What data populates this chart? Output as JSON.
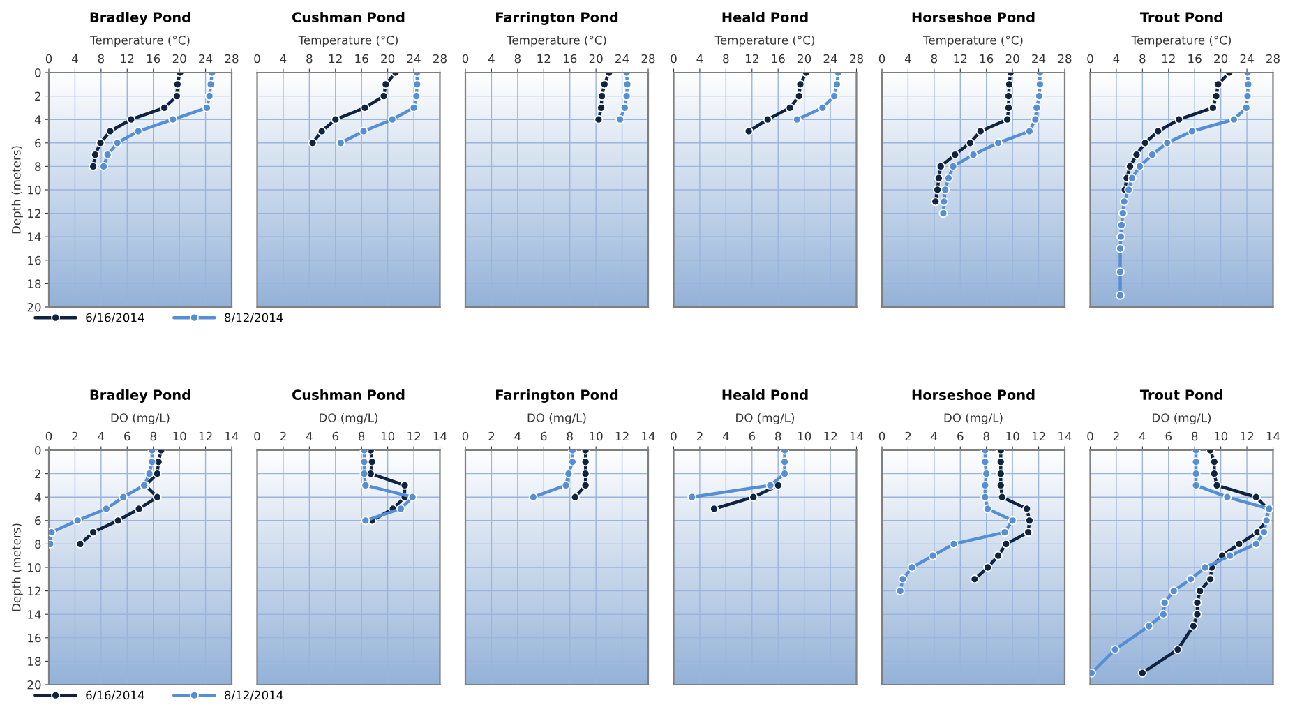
{
  "chart_data": [
    {
      "type": "line",
      "title": "Bradley Pond",
      "xlabel": "Temperature (°C)",
      "ylabel": "Depth (meters)",
      "xlim": [
        0,
        28
      ],
      "xticks": [
        0,
        4,
        8,
        12,
        16,
        20,
        24,
        28
      ],
      "ylim": [
        20,
        0
      ],
      "yticks": [
        0,
        2,
        4,
        6,
        8,
        10,
        12,
        14,
        16,
        18,
        20
      ],
      "grid": true,
      "marker": "circle",
      "line_style": "solid",
      "legend": "bottom",
      "series": [
        {
          "name": "6/16/2014",
          "color": "#0f2340",
          "x": [
            20.1,
            19.7,
            19.6,
            17.7,
            12.6,
            9.4,
            7.9,
            7.1,
            6.8
          ],
          "values": [
            0,
            1,
            2,
            3,
            4,
            5,
            6,
            7,
            8
          ]
        },
        {
          "name": "8/12/2014",
          "color": "#558ed5",
          "x": [
            25.0,
            24.8,
            24.6,
            24.2,
            19.0,
            13.7,
            10.5,
            9.0,
            8.4
          ],
          "values": [
            0,
            1,
            2,
            3,
            4,
            5,
            6,
            7,
            8
          ]
        }
      ]
    },
    {
      "type": "line",
      "title": "Cushman Pond",
      "xlabel": "Temperature (°C)",
      "xlim": [
        0,
        28
      ],
      "xticks": [
        0,
        4,
        8,
        12,
        16,
        20,
        24,
        28
      ],
      "ylim": [
        20,
        0
      ],
      "yticks": [
        0,
        2,
        4,
        6,
        8,
        10,
        12,
        14,
        16,
        18,
        20
      ],
      "grid": true,
      "marker": "circle",
      "line_style": "solid",
      "tick_labels": "x",
      "series": [
        {
          "color": "#0f2340",
          "x": [
            21.2,
            19.7,
            19.4,
            16.5,
            12.0,
            9.9,
            8.5
          ],
          "values": [
            0,
            1,
            2,
            3,
            4,
            5,
            6
          ]
        },
        {
          "color": "#558ed5",
          "x": [
            24.5,
            24.5,
            24.4,
            24.0,
            20.7,
            16.3,
            12.8
          ],
          "values": [
            0,
            1,
            2,
            3,
            4,
            5,
            6
          ]
        }
      ]
    },
    {
      "type": "line",
      "title": "Farrington Pond",
      "xlabel": "Temperature (°C)",
      "xlim": [
        0,
        28
      ],
      "xticks": [
        0,
        4,
        8,
        12,
        16,
        20,
        24,
        28
      ],
      "ylim": [
        20,
        0
      ],
      "yticks": [
        0,
        2,
        4,
        6,
        8,
        10,
        12,
        14,
        16,
        18,
        20
      ],
      "grid": true,
      "marker": "circle",
      "line_style": "solid",
      "tick_labels": "x",
      "series": [
        {
          "color": "#0f2340",
          "x": [
            22.0,
            21.3,
            20.9,
            20.8,
            20.4
          ],
          "values": [
            0,
            1,
            2,
            3,
            4
          ]
        },
        {
          "color": "#558ed5",
          "x": [
            24.7,
            24.8,
            24.7,
            24.4,
            23.7
          ],
          "values": [
            0,
            1,
            2,
            3,
            4
          ]
        }
      ]
    },
    {
      "type": "line",
      "title": "Heald Pond",
      "xlabel": "Temperature (°C)",
      "xlim": [
        0,
        28
      ],
      "xticks": [
        0,
        4,
        8,
        12,
        16,
        20,
        24,
        28
      ],
      "ylim": [
        20,
        0
      ],
      "yticks": [
        0,
        2,
        4,
        6,
        8,
        10,
        12,
        14,
        16,
        18,
        20
      ],
      "grid": true,
      "marker": "circle",
      "line_style": "solid",
      "tick_labels": "x",
      "series": [
        {
          "color": "#0f2340",
          "x": [
            20.3,
            19.4,
            19.2,
            17.8,
            14.4,
            11.5
          ],
          "values": [
            0,
            1,
            2,
            3,
            4,
            5
          ]
        },
        {
          "color": "#558ed5",
          "x": [
            25.2,
            25.0,
            24.6,
            22.8,
            18.9
          ],
          "values": [
            0,
            1,
            2,
            3,
            4
          ]
        }
      ]
    },
    {
      "type": "line",
      "title": "Horseshoe Pond",
      "xlabel": "Temperature (°C)",
      "xlim": [
        0,
        28
      ],
      "xticks": [
        0,
        4,
        8,
        12,
        16,
        20,
        24,
        28
      ],
      "ylim": [
        20,
        0
      ],
      "yticks": [
        0,
        2,
        4,
        6,
        8,
        10,
        12,
        14,
        16,
        18,
        20
      ],
      "grid": true,
      "marker": "circle",
      "line_style": "solid",
      "tick_labels": "x",
      "series": [
        {
          "color": "#0f2340",
          "x": [
            19.7,
            19.5,
            19.4,
            19.4,
            19.2,
            15.1,
            13.5,
            11.2,
            9.0,
            8.7,
            8.5,
            8.2
          ],
          "values": [
            0,
            1,
            2,
            3,
            4,
            5,
            6,
            7,
            8,
            9,
            10,
            11
          ]
        },
        {
          "color": "#558ed5",
          "x": [
            24.2,
            24.2,
            24.1,
            23.7,
            23.5,
            22.6,
            17.8,
            14.0,
            10.9,
            10.2,
            9.7,
            9.5,
            9.4
          ],
          "values": [
            0,
            1,
            2,
            3,
            4,
            5,
            6,
            7,
            8,
            9,
            10,
            11,
            12
          ]
        }
      ]
    },
    {
      "type": "line",
      "title": "Trout Pond",
      "xlabel": "Temperature (°C)",
      "xlim": [
        0,
        28
      ],
      "xticks": [
        0,
        4,
        8,
        12,
        16,
        20,
        24,
        28
      ],
      "ylim": [
        20,
        0
      ],
      "yticks": [
        0,
        2,
        4,
        6,
        8,
        10,
        12,
        14,
        16,
        18,
        20
      ],
      "grid": true,
      "marker": "circle",
      "line_style": "solid",
      "tick_labels": "x",
      "series": [
        {
          "color": "#0f2340",
          "x": [
            21.3,
            19.6,
            19.3,
            18.8,
            13.6,
            10.4,
            8.4,
            7.1,
            6.1,
            5.6,
            5.3
          ],
          "values": [
            0,
            1,
            2,
            3,
            4,
            5,
            6,
            7,
            8,
            9,
            10
          ]
        },
        {
          "color": "#558ed5",
          "x": [
            24.1,
            24.2,
            24.1,
            23.9,
            22.0,
            15.6,
            11.8,
            9.5,
            7.6,
            6.4,
            5.9,
            5.2,
            5.0,
            4.8,
            4.7,
            4.6,
            4.6,
            4.6
          ],
          "values": [
            0,
            1,
            2,
            3,
            4,
            5,
            6,
            7,
            8,
            9,
            10,
            11,
            12,
            13,
            14,
            15,
            17,
            19
          ]
        }
      ]
    },
    {
      "type": "line",
      "title": "Bradley Pond",
      "xlabel": "DO (mg/L)",
      "ylabel": "Depth (meters)",
      "xlim": [
        0,
        14
      ],
      "xticks": [
        0,
        2,
        4,
        6,
        8,
        10,
        12,
        14
      ],
      "ylim": [
        20,
        0
      ],
      "yticks": [
        0,
        2,
        4,
        6,
        8,
        10,
        12,
        14,
        16,
        18,
        20
      ],
      "grid": true,
      "marker": "circle",
      "line_style": "solid",
      "legend": "bottom",
      "series": [
        {
          "name": "6/16/2014",
          "color": "#0f2340",
          "x": [
            8.6,
            8.4,
            8.3,
            7.4,
            8.3,
            6.9,
            5.3,
            3.4,
            2.4
          ],
          "values": [
            0,
            1,
            2,
            3,
            4,
            5,
            6,
            7,
            8
          ]
        },
        {
          "name": "8/12/2014",
          "color": "#558ed5",
          "x": [
            7.9,
            7.9,
            7.7,
            7.3,
            5.7,
            4.4,
            2.2,
            0.2,
            0.1
          ],
          "values": [
            0,
            1,
            2,
            3,
            4,
            5,
            6,
            7,
            8
          ]
        }
      ]
    },
    {
      "type": "line",
      "title": "Cushman Pond",
      "xlabel": "DO (mg/L)",
      "xlim": [
        0,
        14
      ],
      "xticks": [
        0,
        2,
        4,
        6,
        8,
        10,
        12,
        14
      ],
      "ylim": [
        20,
        0
      ],
      "yticks": [
        0,
        2,
        4,
        6,
        8,
        10,
        12,
        14,
        16,
        18,
        20
      ],
      "grid": true,
      "marker": "circle",
      "line_style": "solid",
      "tick_labels": "x",
      "series": [
        {
          "color": "#0f2340",
          "x": [
            8.7,
            8.8,
            8.7,
            11.3,
            11.3,
            10.4,
            8.8
          ],
          "values": [
            0,
            1,
            2,
            3,
            4,
            5,
            6
          ]
        },
        {
          "color": "#558ed5",
          "x": [
            8.2,
            8.2,
            8.2,
            8.3,
            11.9,
            11.0,
            8.3
          ],
          "values": [
            0,
            1,
            2,
            3,
            4,
            5,
            6
          ]
        }
      ]
    },
    {
      "type": "line",
      "title": "Farrington Pond",
      "xlabel": "DO (mg/L)",
      "xlim": [
        0,
        14
      ],
      "xticks": [
        0,
        2,
        4,
        6,
        8,
        10,
        12,
        14
      ],
      "ylim": [
        20,
        0
      ],
      "yticks": [
        0,
        2,
        4,
        6,
        8,
        10,
        12,
        14,
        16,
        18,
        20
      ],
      "grid": true,
      "marker": "circle",
      "line_style": "solid",
      "tick_labels": "x",
      "series": [
        {
          "color": "#0f2340",
          "x": [
            9.2,
            9.2,
            9.2,
            9.2,
            8.4
          ],
          "values": [
            0,
            1,
            2,
            3,
            4
          ]
        },
        {
          "color": "#558ed5",
          "x": [
            8.2,
            8.2,
            7.9,
            7.7,
            5.2
          ],
          "values": [
            0,
            1,
            2,
            3,
            4
          ]
        }
      ]
    },
    {
      "type": "line",
      "title": "Heald Pond",
      "xlabel": "DO (mg/L)",
      "xlim": [
        0,
        14
      ],
      "xticks": [
        0,
        2,
        4,
        6,
        8,
        10,
        12,
        14
      ],
      "ylim": [
        20,
        0
      ],
      "yticks": [
        0,
        2,
        4,
        6,
        8,
        10,
        12,
        14,
        16,
        18,
        20
      ],
      "grid": true,
      "marker": "circle",
      "line_style": "solid",
      "tick_labels": "x",
      "series": [
        {
          "color": "#0f2340",
          "x": [
            8.0,
            6.1,
            3.1
          ],
          "values": [
            3,
            4,
            5
          ]
        },
        {
          "color": "#558ed5",
          "x": [
            8.5,
            8.5,
            8.5,
            7.4,
            1.4
          ],
          "values": [
            0,
            1,
            2,
            3,
            4
          ]
        }
      ]
    },
    {
      "type": "line",
      "title": "Horseshoe Pond",
      "xlabel": "DO (mg/L)",
      "xlim": [
        0,
        14
      ],
      "xticks": [
        0,
        2,
        4,
        6,
        8,
        10,
        12,
        14
      ],
      "ylim": [
        20,
        0
      ],
      "yticks": [
        0,
        2,
        4,
        6,
        8,
        10,
        12,
        14,
        16,
        18,
        20
      ],
      "grid": true,
      "marker": "circle",
      "line_style": "solid",
      "tick_labels": "x",
      "series": [
        {
          "color": "#0f2340",
          "x": [
            9.1,
            9.1,
            9.1,
            9.1,
            9.2,
            11.1,
            11.3,
            11.2,
            9.5,
            8.9,
            8.1,
            7.1
          ],
          "values": [
            0,
            1,
            2,
            3,
            4,
            5,
            6,
            7,
            8,
            9,
            10,
            11
          ]
        },
        {
          "color": "#558ed5",
          "x": [
            7.9,
            7.9,
            8.0,
            7.9,
            7.9,
            8.1,
            10.0,
            9.4,
            5.5,
            3.9,
            2.3,
            1.6,
            1.4
          ],
          "values": [
            0,
            1,
            2,
            3,
            4,
            5,
            6,
            7,
            8,
            9,
            10,
            11,
            12
          ]
        }
      ]
    },
    {
      "type": "line",
      "title": "Trout Pond",
      "xlabel": "DO (mg/L)",
      "xlim": [
        0,
        14
      ],
      "xticks": [
        0,
        2,
        4,
        6,
        8,
        10,
        12,
        14
      ],
      "ylim": [
        20,
        0
      ],
      "yticks": [
        0,
        2,
        4,
        6,
        8,
        10,
        12,
        14,
        16,
        18,
        20
      ],
      "grid": true,
      "marker": "circle",
      "line_style": "solid",
      "tick_labels": "x",
      "series": [
        {
          "color": "#0f2340",
          "x": [
            9.2,
            9.5,
            9.5,
            9.7,
            12.7,
            13.6,
            13.5,
            12.8,
            11.4,
            10.1,
            9.3,
            9.2,
            8.4,
            8.2,
            8.2,
            7.9,
            6.7,
            4.0
          ],
          "values": [
            0,
            1,
            2,
            3,
            4,
            5,
            6,
            7,
            8,
            9,
            10,
            11,
            12,
            13,
            14,
            15,
            17,
            19
          ]
        },
        {
          "color": "#558ed5",
          "x": [
            8.1,
            8.1,
            8.1,
            8.1,
            10.5,
            13.7,
            13.5,
            13.3,
            12.7,
            10.7,
            8.8,
            7.7,
            6.4,
            5.7,
            5.6,
            4.5,
            1.9,
            0.1
          ],
          "values": [
            0,
            1,
            2,
            3,
            4,
            5,
            6,
            7,
            8,
            9,
            10,
            11,
            12,
            13,
            14,
            15,
            17,
            19
          ]
        }
      ]
    }
  ]
}
